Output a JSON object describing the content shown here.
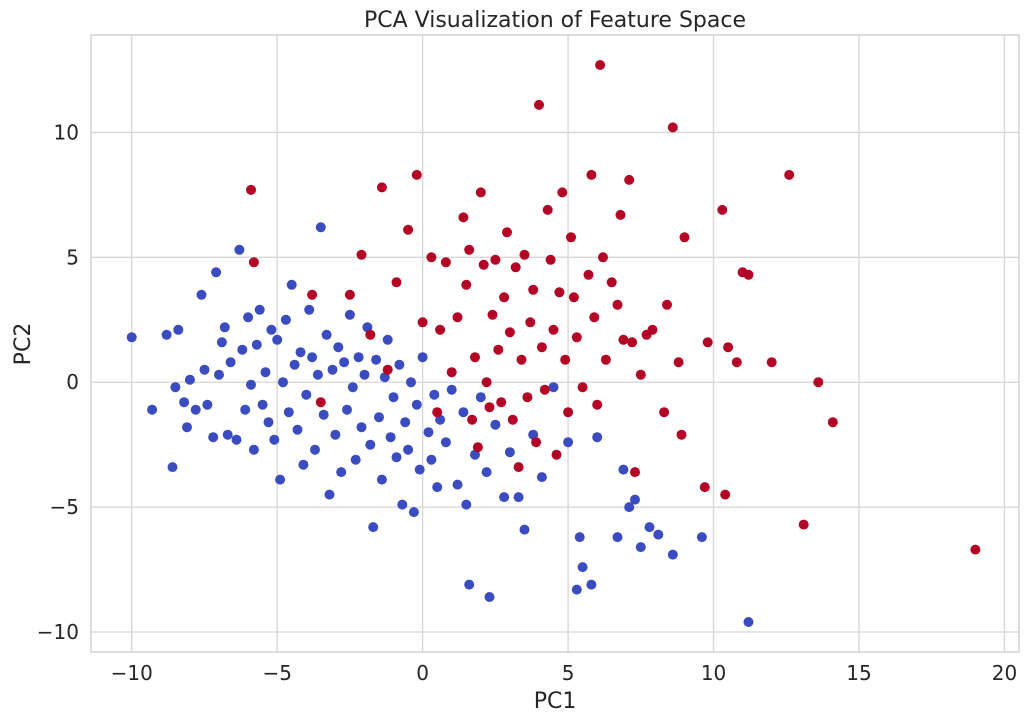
{
  "chart_data": {
    "type": "scatter",
    "title": "PCA Visualization of Feature Space",
    "xlabel": "PC1",
    "ylabel": "PC2",
    "xlim": [
      -11.4,
      20.5
    ],
    "ylim": [
      -10.8,
      13.9
    ],
    "x_ticks": [
      -10,
      -5,
      0,
      5,
      10,
      15,
      20
    ],
    "y_ticks": [
      -10,
      -5,
      0,
      5,
      10
    ],
    "x_tick_labels": [
      "−10",
      "−5",
      "0",
      "5",
      "10",
      "15",
      "20"
    ],
    "y_tick_labels": [
      "−10",
      "−5",
      "0",
      "5",
      "10"
    ],
    "grid": true,
    "legend": "none",
    "colors": {
      "class_0": "#3b4cc0",
      "class_1": "#b40426"
    },
    "series": [
      {
        "points": [
          [
            -10.0,
            1.8
          ],
          [
            -9.3,
            -1.1
          ],
          [
            -8.8,
            1.9
          ],
          [
            -8.6,
            -3.4
          ],
          [
            -8.5,
            -0.2
          ],
          [
            -8.4,
            2.1
          ],
          [
            -8.2,
            -0.8
          ],
          [
            -8.1,
            -1.8
          ],
          [
            -8.0,
            0.1
          ],
          [
            -7.8,
            -1.1
          ],
          [
            -7.6,
            3.5
          ],
          [
            -7.5,
            0.5
          ],
          [
            -7.4,
            -0.9
          ],
          [
            -7.2,
            -2.2
          ],
          [
            -7.1,
            4.4
          ],
          [
            -7.0,
            0.3
          ],
          [
            -6.9,
            1.6
          ],
          [
            -6.8,
            2.2
          ],
          [
            -6.7,
            -2.1
          ],
          [
            -6.6,
            0.8
          ],
          [
            -6.4,
            -2.3
          ],
          [
            -6.3,
            5.3
          ],
          [
            -6.2,
            1.3
          ],
          [
            -6.1,
            -1.1
          ],
          [
            -6.0,
            2.6
          ],
          [
            -5.9,
            -0.1
          ],
          [
            -5.8,
            -2.7
          ],
          [
            -5.7,
            1.5
          ],
          [
            -5.6,
            2.9
          ],
          [
            -5.5,
            -0.9
          ],
          [
            -5.4,
            0.4
          ],
          [
            -5.3,
            -1.6
          ],
          [
            -5.2,
            2.1
          ],
          [
            -5.1,
            -2.3
          ],
          [
            -5.0,
            1.7
          ],
          [
            -4.9,
            -3.9
          ],
          [
            -4.8,
            0.0
          ],
          [
            -4.7,
            2.5
          ],
          [
            -4.6,
            -1.2
          ],
          [
            -4.5,
            3.9
          ],
          [
            -4.4,
            0.7
          ],
          [
            -4.3,
            -1.9
          ],
          [
            -4.2,
            1.2
          ],
          [
            -4.1,
            -3.3
          ],
          [
            -4.0,
            -0.5
          ],
          [
            -3.9,
            2.9
          ],
          [
            -3.8,
            1.0
          ],
          [
            -3.7,
            -2.7
          ],
          [
            -3.6,
            0.3
          ],
          [
            -3.5,
            6.2
          ],
          [
            -3.4,
            -1.3
          ],
          [
            -3.3,
            1.9
          ],
          [
            -3.2,
            -4.5
          ],
          [
            -3.1,
            0.5
          ],
          [
            -3.0,
            -2.1
          ],
          [
            -2.9,
            1.4
          ],
          [
            -2.8,
            -3.6
          ],
          [
            -2.7,
            0.8
          ],
          [
            -2.6,
            -1.1
          ],
          [
            -2.5,
            2.7
          ],
          [
            -2.4,
            -0.2
          ],
          [
            -2.3,
            -3.1
          ],
          [
            -2.2,
            1.0
          ],
          [
            -2.1,
            -1.8
          ],
          [
            -2.0,
            0.3
          ],
          [
            -1.9,
            2.2
          ],
          [
            -1.8,
            -2.5
          ],
          [
            -1.7,
            -5.8
          ],
          [
            -1.6,
            0.9
          ],
          [
            -1.5,
            -1.4
          ],
          [
            -1.4,
            -3.9
          ],
          [
            -1.3,
            0.2
          ],
          [
            -1.2,
            1.7
          ],
          [
            -1.1,
            -2.2
          ],
          [
            -1.0,
            -0.6
          ],
          [
            -0.9,
            -3.0
          ],
          [
            -0.8,
            0.7
          ],
          [
            -0.7,
            -4.9
          ],
          [
            -0.6,
            -1.6
          ],
          [
            -0.5,
            -2.7
          ],
          [
            -0.4,
            0.0
          ],
          [
            -0.3,
            -5.2
          ],
          [
            -0.2,
            -0.9
          ],
          [
            -0.1,
            -3.5
          ],
          [
            0.0,
            1.0
          ],
          [
            0.2,
            -2.0
          ],
          [
            0.3,
            -3.1
          ],
          [
            0.4,
            -0.5
          ],
          [
            0.5,
            -4.2
          ],
          [
            0.6,
            -1.5
          ],
          [
            0.8,
            -2.4
          ],
          [
            1.0,
            -0.3
          ],
          [
            1.2,
            -4.1
          ],
          [
            1.4,
            -1.2
          ],
          [
            1.5,
            -4.9
          ],
          [
            1.6,
            -8.1
          ],
          [
            1.8,
            -2.9
          ],
          [
            2.0,
            -0.6
          ],
          [
            2.2,
            -3.6
          ],
          [
            2.3,
            -8.6
          ],
          [
            2.5,
            -1.7
          ],
          [
            2.8,
            -4.6
          ],
          [
            3.0,
            -2.8
          ],
          [
            3.3,
            -4.6
          ],
          [
            3.5,
            -5.9
          ],
          [
            3.8,
            -2.1
          ],
          [
            4.1,
            -3.8
          ],
          [
            4.5,
            -0.2
          ],
          [
            5.0,
            -2.4
          ],
          [
            5.3,
            -8.3
          ],
          [
            5.4,
            -6.2
          ],
          [
            5.5,
            -7.4
          ],
          [
            5.8,
            -8.1
          ],
          [
            6.0,
            -2.2
          ],
          [
            6.7,
            -6.2
          ],
          [
            6.9,
            -3.5
          ],
          [
            7.1,
            -5.0
          ],
          [
            7.3,
            -4.7
          ],
          [
            7.5,
            -6.6
          ],
          [
            7.8,
            -5.8
          ],
          [
            8.1,
            -6.1
          ],
          [
            8.6,
            -6.9
          ],
          [
            9.6,
            -6.2
          ],
          [
            11.2,
            -9.6
          ]
        ],
        "color": "#3b4cc0"
      },
      {
        "points": [
          [
            -5.9,
            7.7
          ],
          [
            -5.8,
            4.8
          ],
          [
            -3.8,
            3.5
          ],
          [
            -3.5,
            -0.8
          ],
          [
            -2.5,
            3.5
          ],
          [
            -2.1,
            5.1
          ],
          [
            -1.8,
            1.9
          ],
          [
            -1.4,
            7.8
          ],
          [
            -1.2,
            0.5
          ],
          [
            -0.9,
            4.0
          ],
          [
            -0.5,
            6.1
          ],
          [
            -0.2,
            8.3
          ],
          [
            0.0,
            2.4
          ],
          [
            0.3,
            5.0
          ],
          [
            0.5,
            -1.2
          ],
          [
            0.6,
            2.1
          ],
          [
            0.8,
            4.8
          ],
          [
            1.0,
            0.4
          ],
          [
            1.2,
            2.6
          ],
          [
            1.4,
            6.6
          ],
          [
            1.5,
            3.9
          ],
          [
            1.6,
            5.3
          ],
          [
            1.7,
            -1.5
          ],
          [
            1.8,
            1.0
          ],
          [
            1.9,
            -2.6
          ],
          [
            2.0,
            7.6
          ],
          [
            2.1,
            4.7
          ],
          [
            2.2,
            0.0
          ],
          [
            2.3,
            -1.0
          ],
          [
            2.4,
            2.7
          ],
          [
            2.5,
            4.9
          ],
          [
            2.6,
            1.3
          ],
          [
            2.7,
            -0.8
          ],
          [
            2.8,
            3.4
          ],
          [
            2.9,
            6.0
          ],
          [
            3.0,
            2.0
          ],
          [
            3.1,
            -1.5
          ],
          [
            3.2,
            4.6
          ],
          [
            3.3,
            -3.4
          ],
          [
            3.4,
            0.9
          ],
          [
            3.5,
            5.1
          ],
          [
            3.6,
            -0.6
          ],
          [
            3.7,
            2.4
          ],
          [
            3.8,
            3.7
          ],
          [
            3.9,
            -2.4
          ],
          [
            4.0,
            11.1
          ],
          [
            4.1,
            1.4
          ],
          [
            4.2,
            -0.3
          ],
          [
            4.3,
            6.9
          ],
          [
            4.4,
            4.9
          ],
          [
            4.5,
            2.1
          ],
          [
            4.6,
            -2.9
          ],
          [
            4.7,
            3.6
          ],
          [
            4.8,
            7.6
          ],
          [
            4.9,
            0.9
          ],
          [
            5.0,
            -1.2
          ],
          [
            5.1,
            5.8
          ],
          [
            5.2,
            3.4
          ],
          [
            5.3,
            1.8
          ],
          [
            5.5,
            -0.2
          ],
          [
            5.7,
            4.3
          ],
          [
            5.8,
            8.3
          ],
          [
            5.9,
            2.6
          ],
          [
            6.0,
            -0.9
          ],
          [
            6.1,
            12.7
          ],
          [
            6.2,
            5.0
          ],
          [
            6.3,
            0.9
          ],
          [
            6.5,
            4.0
          ],
          [
            6.7,
            3.1
          ],
          [
            6.8,
            6.7
          ],
          [
            6.9,
            1.7
          ],
          [
            7.1,
            8.1
          ],
          [
            7.2,
            1.6
          ],
          [
            7.3,
            -3.6
          ],
          [
            7.5,
            0.3
          ],
          [
            7.7,
            1.9
          ],
          [
            7.9,
            2.1
          ],
          [
            8.3,
            -1.2
          ],
          [
            8.4,
            3.1
          ],
          [
            8.6,
            10.2
          ],
          [
            8.8,
            0.8
          ],
          [
            8.9,
            -2.1
          ],
          [
            9.0,
            5.8
          ],
          [
            9.7,
            -4.2
          ],
          [
            9.8,
            1.6
          ],
          [
            10.3,
            6.9
          ],
          [
            10.4,
            -4.5
          ],
          [
            10.5,
            1.4
          ],
          [
            10.8,
            0.8
          ],
          [
            11.0,
            4.4
          ],
          [
            11.2,
            4.3
          ],
          [
            12.0,
            0.8
          ],
          [
            12.6,
            8.3
          ],
          [
            13.1,
            -5.7
          ],
          [
            13.6,
            0.0
          ],
          [
            14.1,
            -1.6
          ],
          [
            19.0,
            -6.7
          ]
        ],
        "color": "#b40426"
      }
    ]
  }
}
